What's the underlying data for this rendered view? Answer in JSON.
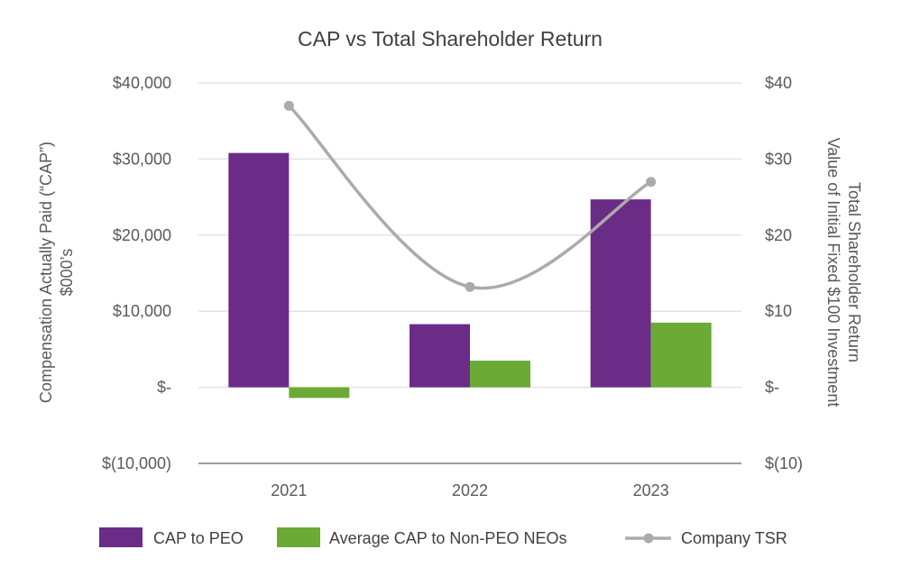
{
  "chart_data": {
    "type": "bar",
    "title": "CAP vs Total Shareholder Return",
    "categories": [
      "2021",
      "2022",
      "2023"
    ],
    "left_axis": {
      "label_line1": "Compensation Actually Paid (“CAP”)",
      "label_line2": "$000’s",
      "ylim": [
        -10000,
        40000
      ],
      "ticks": [
        {
          "value": 40000,
          "label": "$40,000"
        },
        {
          "value": 30000,
          "label": "$30,000"
        },
        {
          "value": 20000,
          "label": "$20,000"
        },
        {
          "value": 10000,
          "label": "$10,000"
        },
        {
          "value": 0,
          "label": "$-"
        },
        {
          "value": -10000,
          "label": "$(10,000)"
        }
      ]
    },
    "right_axis": {
      "label_line1": "Total Shareholder Return",
      "label_line2": "Value of Initial Fixed $100 Investment",
      "ylim": [
        -10,
        40
      ],
      "ticks": [
        {
          "value": 40,
          "label": "$40"
        },
        {
          "value": 30,
          "label": "$30"
        },
        {
          "value": 20,
          "label": "$20"
        },
        {
          "value": 10,
          "label": "$10"
        },
        {
          "value": 0,
          "label": "$-"
        },
        {
          "value": -10,
          "label": "$(10)"
        }
      ]
    },
    "series": [
      {
        "name": "CAP to PEO",
        "kind": "bar",
        "axis": "left",
        "color": "#6a2c86",
        "values": [
          30800,
          8300,
          24700
        ]
      },
      {
        "name": "Average CAP to Non-PEO NEOs",
        "kind": "bar",
        "axis": "left",
        "color": "#6aaa35",
        "values": [
          -1400,
          3500,
          8500
        ]
      },
      {
        "name": "Company TSR",
        "kind": "line",
        "axis": "right",
        "color": "#ababab",
        "values": [
          37,
          13.2,
          27
        ]
      }
    ],
    "legend": {
      "placement": "bottom",
      "items": [
        "CAP to PEO",
        "Average CAP to Non-PEO NEOs",
        "Company TSR"
      ]
    },
    "grid": true
  }
}
